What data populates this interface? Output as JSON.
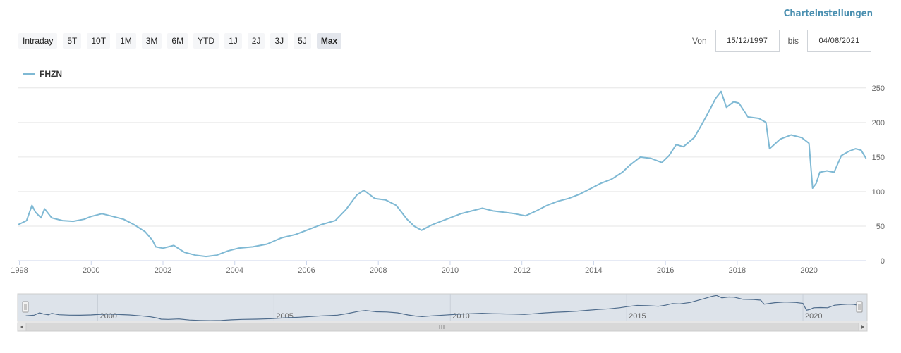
{
  "header": {
    "settings_label": "Charteinstellungen"
  },
  "range_buttons": [
    "Intraday",
    "5T",
    "10T",
    "1M",
    "3M",
    "6M",
    "YTD",
    "1J",
    "2J",
    "3J",
    "5J",
    "Max"
  ],
  "active_range": "Max",
  "date_range": {
    "from_label": "Von",
    "from_value": "15/12/1997",
    "to_label": "bis",
    "to_value": "04/08/2021"
  },
  "colors": {
    "series": "#7fb9d4",
    "navigator_line": "#4f6c8c",
    "navigator_fill": "#dde3ea",
    "accent": "#4a8fb0"
  },
  "chart_data": {
    "type": "line",
    "series": [
      {
        "name": "FHZN",
        "x": [
          1997.96,
          1998.2,
          1998.35,
          1998.45,
          1998.6,
          1998.7,
          1998.9,
          1999.2,
          1999.5,
          1999.8,
          2000.0,
          2000.3,
          2000.6,
          2000.9,
          2001.2,
          2001.5,
          2001.7,
          2001.8,
          2002.0,
          2002.3,
          2002.6,
          2002.9,
          2003.2,
          2003.5,
          2003.8,
          2004.1,
          2004.5,
          2004.9,
          2005.3,
          2005.7,
          2006.0,
          2006.4,
          2006.8,
          2007.1,
          2007.4,
          2007.6,
          2007.9,
          2008.2,
          2008.5,
          2008.8,
          2009.0,
          2009.2,
          2009.5,
          2009.8,
          2010.0,
          2010.3,
          2010.6,
          2010.9,
          2011.2,
          2011.5,
          2011.8,
          2012.1,
          2012.4,
          2012.7,
          2013.0,
          2013.3,
          2013.6,
          2013.9,
          2014.2,
          2014.5,
          2014.8,
          2015.0,
          2015.3,
          2015.6,
          2015.9,
          2016.1,
          2016.3,
          2016.5,
          2016.8,
          2017.0,
          2017.2,
          2017.4,
          2017.55,
          2017.7,
          2017.9,
          2018.05,
          2018.3,
          2018.6,
          2018.8,
          2018.9,
          2019.2,
          2019.5,
          2019.8,
          2020.0,
          2020.1,
          2020.2,
          2020.3,
          2020.5,
          2020.7,
          2020.9,
          2021.1,
          2021.3,
          2021.45,
          2021.59
        ],
        "values": [
          52,
          58,
          80,
          70,
          62,
          75,
          62,
          58,
          57,
          60,
          64,
          68,
          64,
          60,
          52,
          42,
          30,
          20,
          18,
          22,
          12,
          8,
          6,
          8,
          14,
          18,
          20,
          24,
          33,
          38,
          44,
          52,
          58,
          74,
          95,
          102,
          90,
          88,
          80,
          60,
          50,
          44,
          52,
          58,
          62,
          68,
          72,
          76,
          72,
          70,
          68,
          65,
          72,
          80,
          86,
          90,
          96,
          104,
          112,
          118,
          128,
          138,
          150,
          148,
          142,
          152,
          168,
          165,
          178,
          196,
          215,
          235,
          245,
          222,
          230,
          228,
          208,
          206,
          200,
          162,
          176,
          182,
          178,
          170,
          105,
          112,
          128,
          130,
          128,
          152,
          158,
          162,
          160,
          148
        ]
      }
    ],
    "xlim": [
      1997.95,
      2021.6
    ],
    "ylim": [
      0,
      260
    ],
    "y_ticks": [
      0,
      50,
      100,
      150,
      200,
      250
    ],
    "x_ticks": [
      1998,
      2000,
      2002,
      2004,
      2006,
      2008,
      2010,
      2012,
      2014,
      2016,
      2018,
      2020
    ],
    "navigator_ticks": [
      2000,
      2005,
      2010,
      2015,
      2020
    ],
    "grid": true,
    "legend_position": "top-left"
  }
}
